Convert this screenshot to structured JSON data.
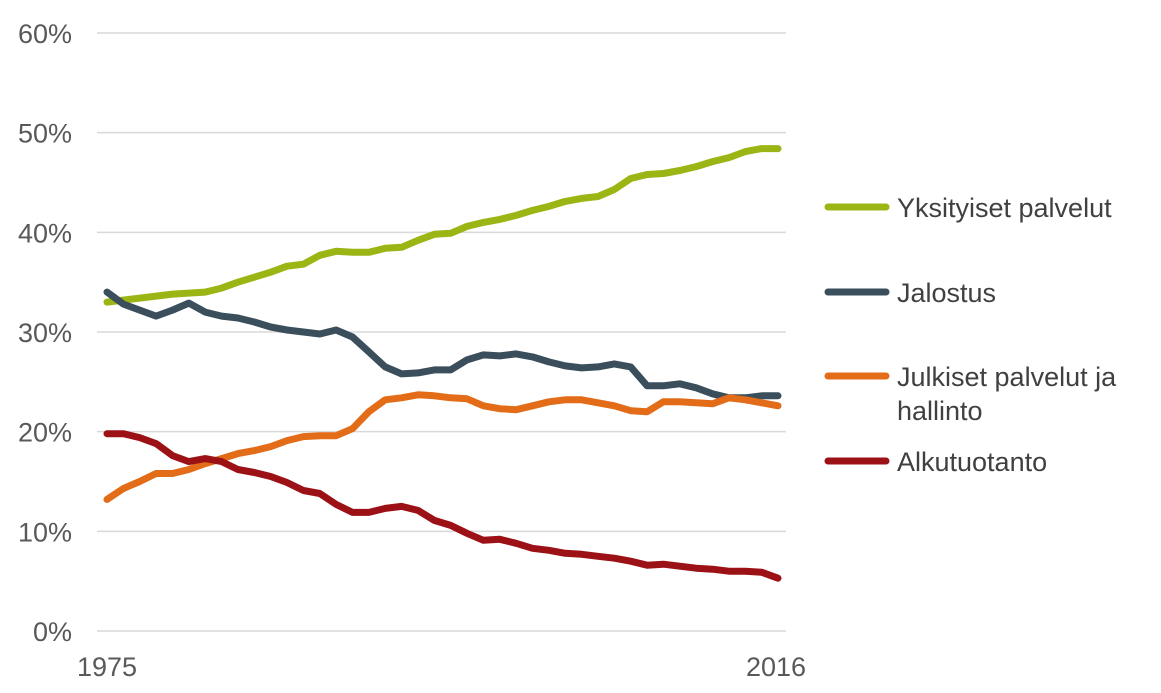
{
  "chart_data": {
    "type": "line",
    "title": "",
    "xlabel": "",
    "ylabel": "",
    "x_tick_labels": [
      "1975",
      "2016"
    ],
    "y_tick_labels": [
      "0%",
      "10%",
      "20%",
      "30%",
      "40%",
      "50%",
      "60%"
    ],
    "ylim": [
      0,
      60
    ],
    "xlim": [
      1975,
      2016
    ],
    "grid": "horizontal",
    "legend_position": "right",
    "x": [
      1975,
      1976,
      1977,
      1978,
      1979,
      1980,
      1981,
      1982,
      1983,
      1984,
      1985,
      1986,
      1987,
      1988,
      1989,
      1990,
      1991,
      1992,
      1993,
      1994,
      1995,
      1996,
      1997,
      1998,
      1999,
      2000,
      2001,
      2002,
      2003,
      2004,
      2005,
      2006,
      2007,
      2008,
      2009,
      2010,
      2011,
      2012,
      2013,
      2014,
      2015,
      2016
    ],
    "series": [
      {
        "name": "Yksityiset palvelut",
        "color": "#9bb514",
        "values": [
          33.0,
          33.2,
          33.4,
          33.6,
          33.8,
          33.9,
          34.0,
          34.4,
          35.0,
          35.5,
          36.0,
          36.6,
          36.8,
          37.7,
          38.1,
          38.0,
          38.0,
          38.4,
          38.5,
          39.2,
          39.8,
          39.9,
          40.6,
          41.0,
          41.3,
          41.7,
          42.2,
          42.6,
          43.1,
          43.4,
          43.6,
          44.3,
          45.4,
          45.8,
          45.9,
          46.2,
          46.6,
          47.1,
          47.5,
          48.1,
          48.4,
          48.4
        ]
      },
      {
        "name": "Jalostus",
        "color": "#3a4e5c",
        "values": [
          34.0,
          32.8,
          32.2,
          31.6,
          32.2,
          32.9,
          32.0,
          31.6,
          31.4,
          31.0,
          30.5,
          30.2,
          30.0,
          29.8,
          30.2,
          29.5,
          28.0,
          26.5,
          25.8,
          25.9,
          26.2,
          26.2,
          27.2,
          27.7,
          27.6,
          27.8,
          27.5,
          27.0,
          26.6,
          26.4,
          26.5,
          26.8,
          26.5,
          24.6,
          24.6,
          24.8,
          24.4,
          23.8,
          23.4,
          23.4,
          23.6,
          23.6
        ]
      },
      {
        "name": "Julkiset palvelut ja hallinto",
        "color": "#e36c18",
        "values": [
          13.2,
          14.3,
          15.0,
          15.8,
          15.8,
          16.2,
          16.8,
          17.3,
          17.8,
          18.1,
          18.5,
          19.1,
          19.5,
          19.6,
          19.6,
          20.3,
          22.0,
          23.2,
          23.4,
          23.7,
          23.6,
          23.4,
          23.3,
          22.6,
          22.3,
          22.2,
          22.6,
          23.0,
          23.2,
          23.2,
          22.9,
          22.6,
          22.1,
          22.0,
          23.0,
          23.0,
          22.9,
          22.8,
          23.4,
          23.2,
          22.9,
          22.6
        ]
      },
      {
        "name": "Alkutuotanto",
        "color": "#9b1116",
        "values": [
          19.8,
          19.8,
          19.4,
          18.8,
          17.6,
          17.0,
          17.3,
          17.0,
          16.2,
          15.9,
          15.5,
          14.9,
          14.1,
          13.8,
          12.7,
          11.9,
          11.9,
          12.3,
          12.5,
          12.1,
          11.1,
          10.6,
          9.8,
          9.1,
          9.2,
          8.8,
          8.3,
          8.1,
          7.8,
          7.7,
          7.5,
          7.3,
          7.0,
          6.6,
          6.7,
          6.5,
          6.3,
          6.2,
          6.0,
          6.0,
          5.9,
          5.3
        ]
      }
    ]
  }
}
